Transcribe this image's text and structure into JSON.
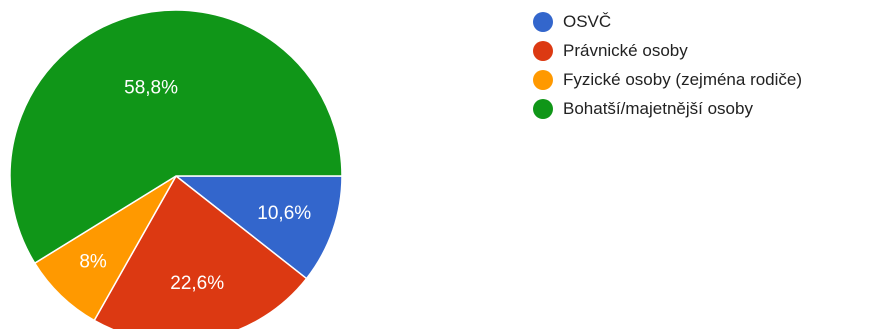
{
  "chart_data": {
    "type": "pie",
    "slices": [
      {
        "label": "OSVČ",
        "value": 10.6,
        "value_label": "10,6%",
        "color": "#3366cc"
      },
      {
        "label": "Právnické osoby",
        "value": 22.6,
        "value_label": "22,6%",
        "color": "#dc3912"
      },
      {
        "label": "Fyzické osoby (zejména rodiče)",
        "value": 8.0,
        "value_label": "8%",
        "color": "#ff9900"
      },
      {
        "label": "Bohatší/majetnější osoby",
        "value": 58.8,
        "value_label": "58,8%",
        "color": "#109618"
      }
    ],
    "legend_position": "top-right"
  }
}
